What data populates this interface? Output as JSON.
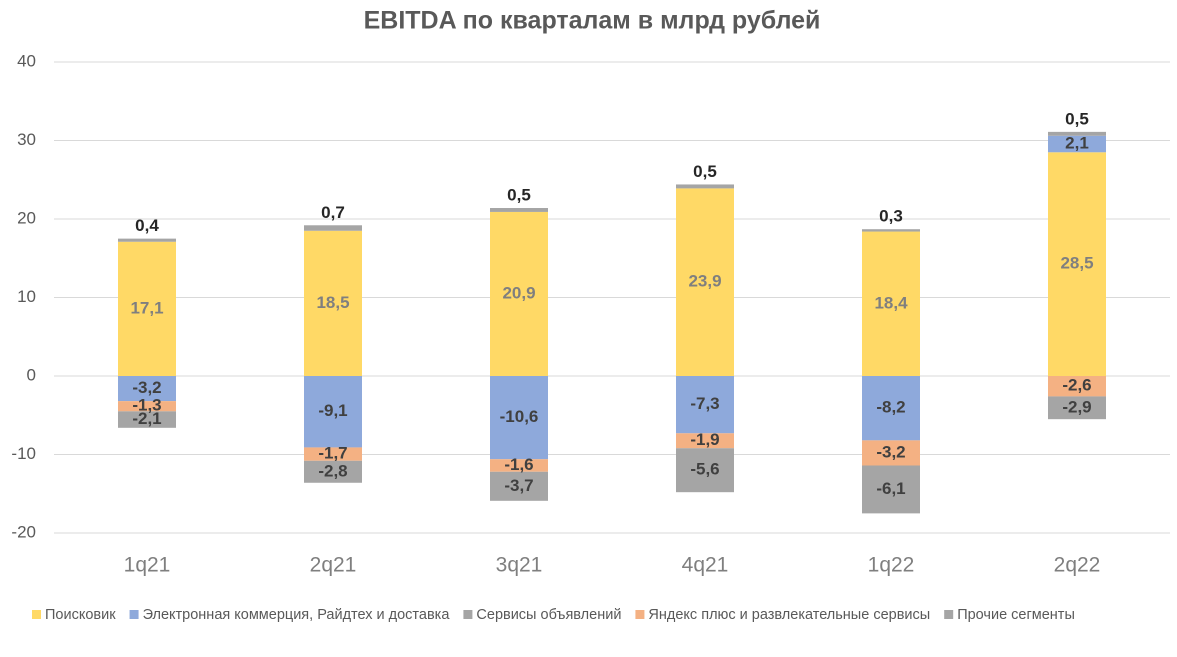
{
  "chart_data": {
    "type": "stacked_bar",
    "title": "EBITDA по кварталам в млрд рублей",
    "categories": [
      "1q21",
      "2q21",
      "3q21",
      "4q21",
      "1q22",
      "2q22"
    ],
    "series": [
      {
        "name": "Поисковик",
        "color": "#FFD966",
        "values": [
          17.1,
          18.5,
          20.9,
          23.9,
          18.4,
          28.5
        ],
        "value_labels": [
          "17,1",
          "18,5",
          "20,9",
          "23,9",
          "18,4",
          "28,5"
        ]
      },
      {
        "name": "Электронная коммерция, Райдтех и доставка",
        "color": "#8EA9DB",
        "values": [
          -3.2,
          -9.1,
          -10.6,
          -7.3,
          -8.2,
          2.1
        ],
        "value_labels": [
          "-3,2",
          "-9,1",
          "-10,6",
          "-7,3",
          "-8,2",
          "2,1"
        ]
      },
      {
        "name": "Сервисы объявлений",
        "color": "#A5A5A5",
        "values": [
          0.4,
          0.7,
          0.5,
          0.5,
          0.3,
          0.5
        ],
        "value_labels": [
          "0,4",
          "0,7",
          "0,5",
          "0,5",
          "0,3",
          "0,5"
        ]
      },
      {
        "name": "Яндекс плюс и развлекательные сервисы",
        "color": "#F4B183",
        "values": [
          -1.3,
          -1.7,
          -1.6,
          -1.9,
          -3.2,
          -2.6
        ],
        "value_labels": [
          "-1,3",
          "-1,7",
          "-1,6",
          "-1,9",
          "-3,2",
          "-2,6"
        ]
      },
      {
        "name": "Прочие сегменты",
        "color": "#A5A5A5",
        "values": [
          -2.1,
          -2.8,
          -3.7,
          -5.6,
          -6.1,
          -2.9
        ],
        "value_labels": [
          "-2,1",
          "-2,8",
          "-3,7",
          "-5,6",
          "-6,1",
          "-2,9"
        ]
      }
    ],
    "ylim": [
      -20,
      40
    ],
    "yticks": [
      -20,
      -10,
      0,
      10,
      20,
      30,
      40
    ],
    "grid": true,
    "legend": "bottom"
  }
}
